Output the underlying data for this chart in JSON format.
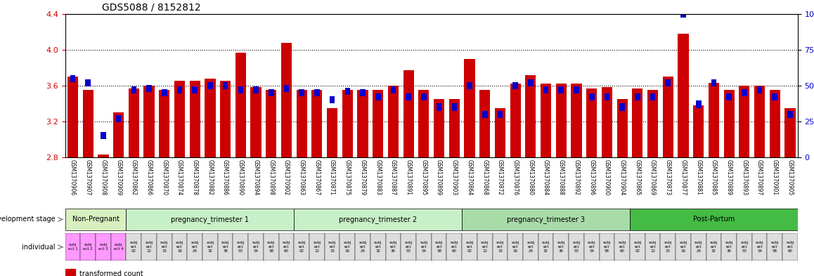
{
  "title": "GDS5088 / 8152812",
  "gsm_labels": [
    "GSM1370906",
    "GSM1370907",
    "GSM1370908",
    "GSM1370909",
    "GSM1370862",
    "GSM1370866",
    "GSM1370870",
    "GSM1370874",
    "GSM1370878",
    "GSM1370882",
    "GSM1370886",
    "GSM1370890",
    "GSM1370894",
    "GSM1370898",
    "GSM1370902",
    "GSM1370863",
    "GSM1370867",
    "GSM1370871",
    "GSM1370875",
    "GSM1370879",
    "GSM1370883",
    "GSM1370887",
    "GSM1370891",
    "GSM1370895",
    "GSM1370899",
    "GSM1370903",
    "GSM1370864",
    "GSM1370868",
    "GSM1370872",
    "GSM1370876",
    "GSM1370880",
    "GSM1370884",
    "GSM1370888",
    "GSM1370892",
    "GSM1370896",
    "GSM1370900",
    "GSM1370904",
    "GSM1370865",
    "GSM1370869",
    "GSM1370873",
    "GSM1370877",
    "GSM1370881",
    "GSM1370885",
    "GSM1370889",
    "GSM1370893",
    "GSM1370897",
    "GSM1370901",
    "GSM1370905"
  ],
  "bar_values": [
    3.7,
    3.55,
    2.83,
    3.3,
    3.57,
    3.6,
    3.55,
    3.65,
    3.65,
    3.68,
    3.65,
    3.97,
    3.58,
    3.55,
    4.08,
    3.55,
    3.55,
    3.35,
    3.55,
    3.55,
    3.55,
    3.6,
    3.77,
    3.55,
    3.45,
    3.45,
    3.9,
    3.55,
    3.35,
    3.62,
    3.72,
    3.62,
    3.62,
    3.62,
    3.57,
    3.58,
    3.45,
    3.57,
    3.55,
    3.7,
    4.18,
    3.38,
    3.63,
    3.55,
    3.6,
    3.6,
    3.55,
    3.35
  ],
  "percentile_values": [
    55,
    52,
    15,
    27,
    47,
    48,
    45,
    47,
    47,
    50,
    50,
    47,
    47,
    45,
    48,
    45,
    45,
    40,
    46,
    45,
    42,
    47,
    42,
    42,
    35,
    35,
    50,
    30,
    30,
    50,
    52,
    47,
    47,
    47,
    42,
    42,
    35,
    42,
    42,
    52,
    100,
    37,
    52,
    42,
    45,
    47,
    42,
    30
  ],
  "ylim_left": [
    2.8,
    4.4
  ],
  "ylim_right": [
    0,
    100
  ],
  "yticks_left": [
    2.8,
    3.2,
    3.6,
    4.0,
    4.4
  ],
  "yticks_right": [
    0,
    25,
    50,
    75,
    100
  ],
  "ytick_labels_right": [
    "0",
    "25",
    "50",
    "75",
    "100%"
  ],
  "development_stages": [
    {
      "label": "Non-Pregnant",
      "start": 0,
      "end": 4,
      "color": "#d4f0c0"
    },
    {
      "label": "pregnancy_trimester 1",
      "start": 4,
      "end": 15,
      "color": "#c8f0c8"
    },
    {
      "label": "pregnancy_trimester 2",
      "start": 15,
      "end": 26,
      "color": "#c8f0c8"
    },
    {
      "label": "pregnancy_trimester 3",
      "start": 26,
      "end": 37,
      "color": "#a8e0a8"
    },
    {
      "label": "Post-Partum",
      "start": 37,
      "end": 48,
      "color": "#44cc44"
    }
  ],
  "individual_labels": [
    "subj\nect 1",
    "subj\nect 2",
    "subj\nect 3",
    "subj\nect 4",
    "subj\nect\n02",
    "subj\nect\n12",
    "subj\nect\n15",
    "subj\nect\n16",
    "subj\nect\n24",
    "subj\nect\n32",
    "subj\nect\n36",
    "subj\nect\n53",
    "subj\nect\n54",
    "subj\nect\n58",
    "subj\nect\n60",
    "subj\nect\n02",
    "subj\nect\n12",
    "subj\nect\n15",
    "subj\nect\n16",
    "subj\nect\n24",
    "subj\nect\n32",
    "subj\nect\n36",
    "subj\nect\n53",
    "subj\nect\n54",
    "subj\nect\n58",
    "subj\nect\n60",
    "subj\nect\n02",
    "subj\nect\n12",
    "subj\nect\n15",
    "subj\nect\n16",
    "subj\nect\n24",
    "subj\nect\n32",
    "subj\nect\n36",
    "subj\nect\n53",
    "subj\nect\n54",
    "subj\nect\n58",
    "subj\nect\n60",
    "subj\nect\n02",
    "subj\nect\n12",
    "subj\nect\n15",
    "subj\nect\n16",
    "subj\nect\n24",
    "subj\nect\n32",
    "subj\nect\n36",
    "subj\nect\n53",
    "subj\nect\n54",
    "subj\nect\n58",
    "subj\nect\n60"
  ],
  "individual_colors": [
    "#ff88ff",
    "#ff88ff",
    "#ff88ff",
    "#ff88ff",
    "#ffffff",
    "#ffffff",
    "#ffffff",
    "#ffffff",
    "#ffffff",
    "#ffffff",
    "#ffffff",
    "#ffffff",
    "#ffffff",
    "#ffffff",
    "#ffffff",
    "#ffffff",
    "#ffffff",
    "#ffffff",
    "#ffffff",
    "#ffffff",
    "#ffffff",
    "#ffffff",
    "#ffffff",
    "#ffffff",
    "#ffffff",
    "#ffffff",
    "#ffffff",
    "#ffffff",
    "#ffffff",
    "#ffffff",
    "#ffffff",
    "#ffffff",
    "#ffffff",
    "#ffffff",
    "#ffffff",
    "#ffffff",
    "#ffffff",
    "#ffffff",
    "#ffffff",
    "#ffffff",
    "#ffffff",
    "#ffffff",
    "#ffffff",
    "#ffffff",
    "#ffffff",
    "#ffffff",
    "#ffffff",
    "#ffffff"
  ],
  "bar_color": "#cc0000",
  "percentile_color": "#0000cc",
  "grid_color": "#000000",
  "title_fontsize": 10,
  "axis_label_color_left": "#cc0000",
  "axis_label_color_right": "#0000cc"
}
